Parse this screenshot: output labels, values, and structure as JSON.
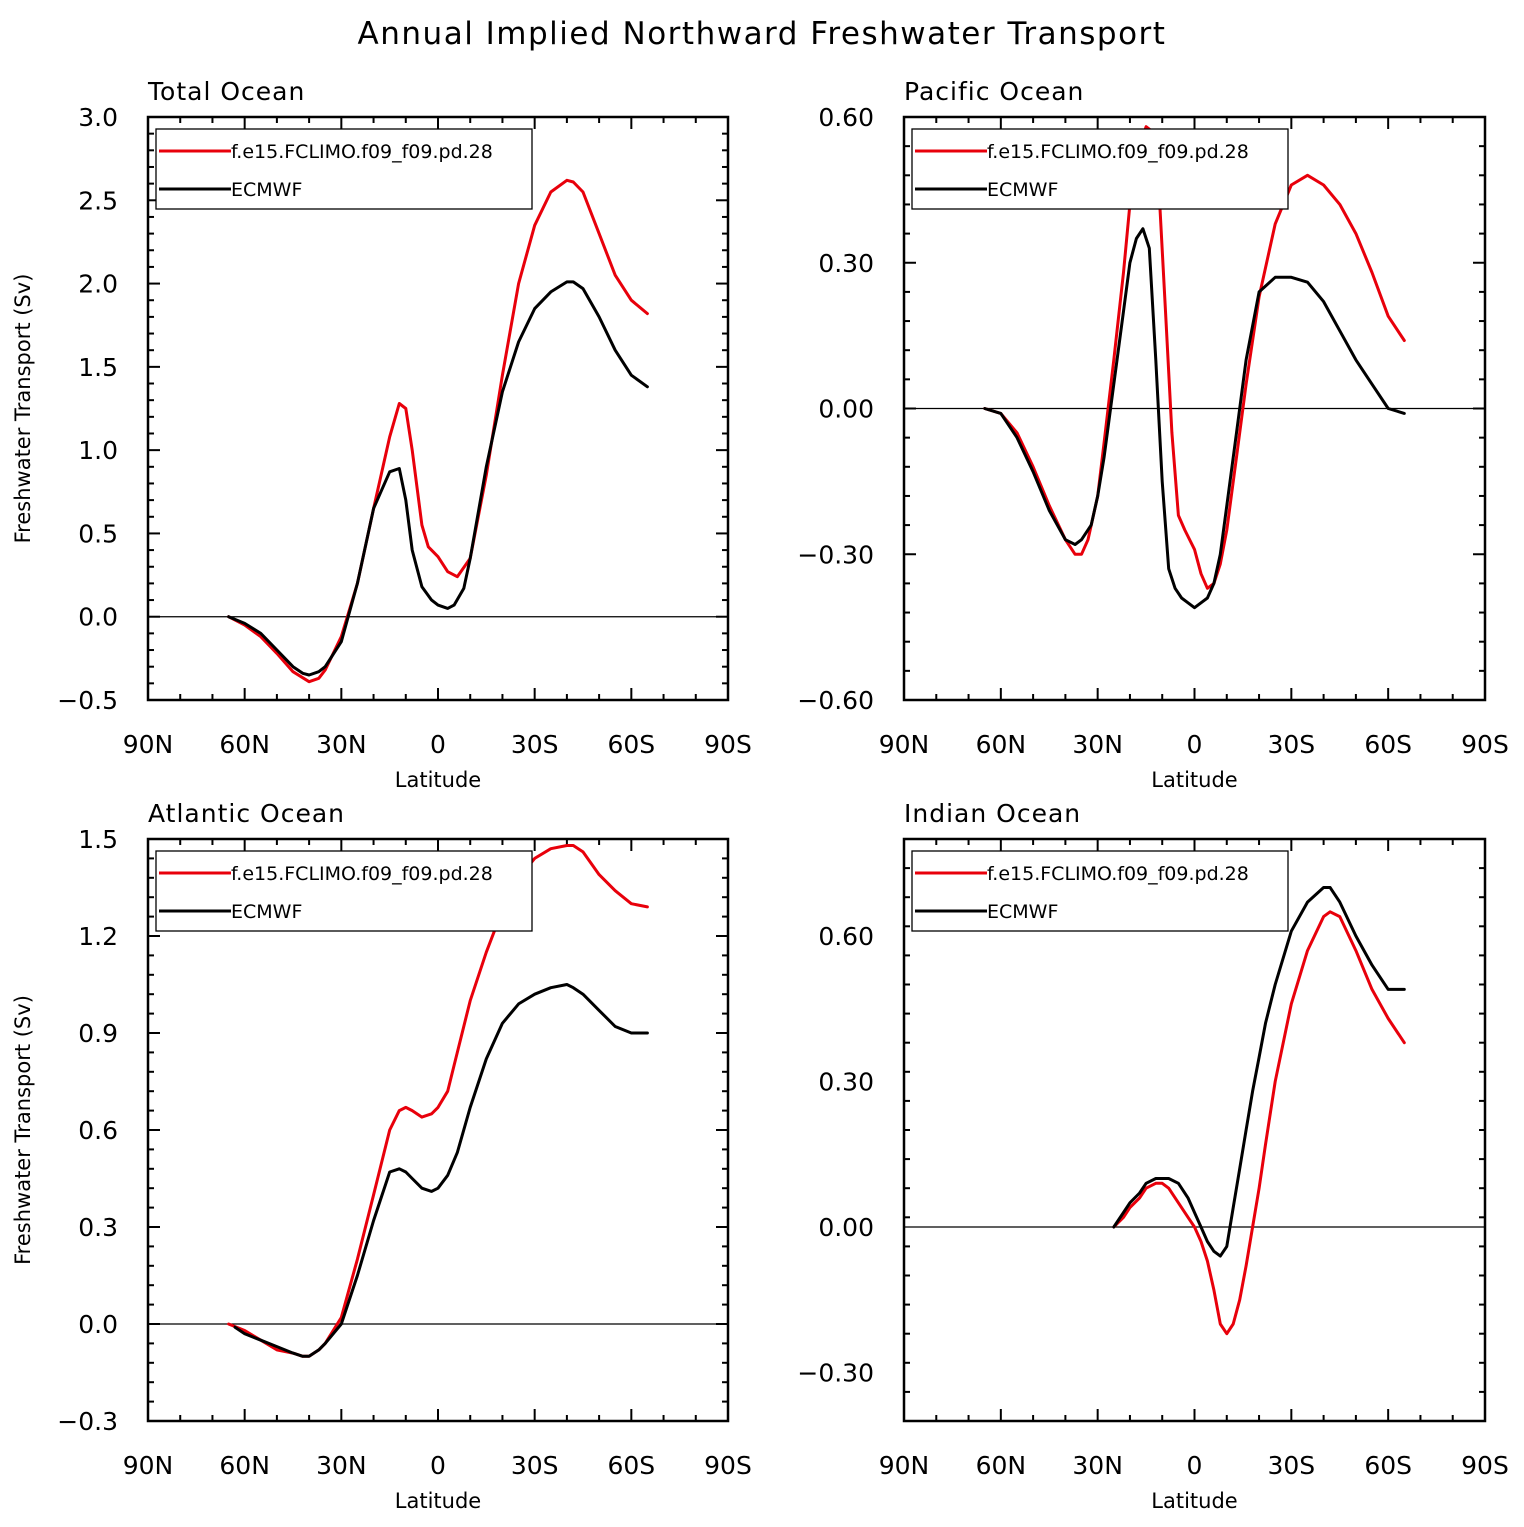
{
  "title": "Annual Implied Northward Freshwater Transport",
  "colors": {
    "model": "#e8000b",
    "obs": "#000000"
  },
  "chart_data": [
    {
      "type": "line",
      "title": "Total Ocean",
      "xlabel": "Latitude",
      "ylabel": "Freshwater Transport (Sv)",
      "xlim": [
        90,
        -90
      ],
      "ylim": [
        -0.5,
        3.0
      ],
      "xticks": [
        90,
        60,
        30,
        0,
        -30,
        -60,
        -90
      ],
      "xticklabels": [
        "90N",
        "60N",
        "30N",
        "0",
        "30S",
        "60S",
        "90S"
      ],
      "yticks": [
        -0.5,
        0.0,
        0.5,
        1.0,
        1.5,
        2.0,
        2.5,
        3.0
      ],
      "yticklabels": [
        "−0.5",
        "0.0",
        "0.5",
        "1.0",
        "1.5",
        "2.0",
        "2.5",
        "3.0"
      ],
      "legend": [
        "f.e15.FCLIMO.f09_f09.pd.28",
        "ECMWF"
      ],
      "legend_position": "top-left",
      "series": [
        {
          "name": "f.e15.FCLIMO.f09_f09.pd.28",
          "color": "model",
          "x": [
            65,
            60,
            55,
            50,
            45,
            40,
            37,
            35,
            30,
            25,
            20,
            15,
            12,
            10,
            8,
            5,
            3,
            0,
            -3,
            -6,
            -10,
            -15,
            -20,
            -25,
            -30,
            -35,
            -40,
            -42,
            -45,
            -50,
            -55,
            -60,
            -65
          ],
          "y": [
            0.0,
            -0.05,
            -0.12,
            -0.22,
            -0.33,
            -0.39,
            -0.37,
            -0.32,
            -0.12,
            0.2,
            0.65,
            1.08,
            1.28,
            1.25,
            1.0,
            0.55,
            0.42,
            0.36,
            0.27,
            0.24,
            0.35,
            0.85,
            1.45,
            2.0,
            2.35,
            2.55,
            2.62,
            2.61,
            2.55,
            2.3,
            2.05,
            1.9,
            1.82
          ]
        },
        {
          "name": "ECMWF",
          "color": "obs",
          "x": [
            65,
            60,
            55,
            50,
            45,
            42,
            40,
            37,
            35,
            30,
            25,
            20,
            15,
            12,
            10,
            8,
            5,
            2,
            0,
            -3,
            -5,
            -8,
            -10,
            -15,
            -20,
            -25,
            -30,
            -35,
            -40,
            -42,
            -45,
            -50,
            -55,
            -60,
            -65
          ],
          "y": [
            0.0,
            -0.04,
            -0.1,
            -0.2,
            -0.3,
            -0.34,
            -0.35,
            -0.33,
            -0.3,
            -0.15,
            0.2,
            0.65,
            0.87,
            0.89,
            0.7,
            0.4,
            0.18,
            0.1,
            0.07,
            0.05,
            0.07,
            0.17,
            0.35,
            0.9,
            1.35,
            1.65,
            1.85,
            1.95,
            2.01,
            2.01,
            1.97,
            1.8,
            1.6,
            1.45,
            1.38
          ]
        }
      ]
    },
    {
      "type": "line",
      "title": "Pacific Ocean",
      "xlabel": "Latitude",
      "ylabel": "",
      "xlim": [
        90,
        -90
      ],
      "ylim": [
        -0.6,
        0.6
      ],
      "xticks": [
        90,
        60,
        30,
        0,
        -30,
        -60,
        -90
      ],
      "xticklabels": [
        "90N",
        "60N",
        "30N",
        "0",
        "30S",
        "60S",
        "90S"
      ],
      "yticks": [
        -0.6,
        -0.3,
        0.0,
        0.3,
        0.6
      ],
      "yticklabels": [
        "−0.60",
        "−0.30",
        "0.00",
        "0.30",
        "0.60"
      ],
      "legend": [
        "f.e15.FCLIMO.f09_f09.pd.28",
        "ECMWF"
      ],
      "legend_position": "top-left",
      "series": [
        {
          "name": "f.e15.FCLIMO.f09_f09.pd.28",
          "color": "model",
          "x": [
            65,
            60,
            55,
            50,
            45,
            40,
            37,
            35,
            33,
            30,
            28,
            25,
            22,
            20,
            18,
            15,
            13,
            11,
            9,
            7,
            5,
            3,
            0,
            -2,
            -4,
            -6,
            -8,
            -10,
            -13,
            -16,
            -20,
            -25,
            -30,
            -35,
            -40,
            -45,
            -50,
            -55,
            -60,
            -65
          ],
          "y": [
            0.0,
            -0.01,
            -0.05,
            -0.12,
            -0.2,
            -0.27,
            -0.3,
            -0.3,
            -0.27,
            -0.18,
            -0.07,
            0.1,
            0.28,
            0.42,
            0.52,
            0.58,
            0.57,
            0.45,
            0.2,
            -0.05,
            -0.22,
            -0.25,
            -0.29,
            -0.34,
            -0.37,
            -0.36,
            -0.32,
            -0.25,
            -0.1,
            0.05,
            0.23,
            0.38,
            0.46,
            0.48,
            0.46,
            0.42,
            0.36,
            0.28,
            0.19,
            0.14
          ]
        },
        {
          "name": "ECMWF",
          "color": "obs",
          "x": [
            65,
            60,
            55,
            50,
            45,
            40,
            37,
            35,
            32,
            30,
            28,
            25,
            22,
            20,
            18,
            16,
            14,
            12,
            10,
            8,
            6,
            4,
            2,
            0,
            -2,
            -4,
            -6,
            -8,
            -10,
            -13,
            -16,
            -20,
            -25,
            -30,
            -35,
            -40,
            -45,
            -50,
            -55,
            -60,
            -65
          ],
          "y": [
            0.0,
            -0.01,
            -0.06,
            -0.13,
            -0.21,
            -0.27,
            -0.28,
            -0.27,
            -0.24,
            -0.18,
            -0.1,
            0.05,
            0.2,
            0.3,
            0.35,
            0.37,
            0.33,
            0.1,
            -0.15,
            -0.33,
            -0.37,
            -0.39,
            -0.4,
            -0.41,
            -0.4,
            -0.39,
            -0.36,
            -0.3,
            -0.2,
            -0.05,
            0.1,
            0.24,
            0.27,
            0.27,
            0.26,
            0.22,
            0.16,
            0.1,
            0.05,
            0.0,
            -0.01
          ]
        }
      ]
    },
    {
      "type": "line",
      "title": "Atlantic Ocean",
      "xlabel": "Latitude",
      "ylabel": "Freshwater Transport (Sv)",
      "xlim": [
        90,
        -90
      ],
      "ylim": [
        -0.3,
        1.5
      ],
      "xticks": [
        90,
        60,
        30,
        0,
        -30,
        -60,
        -90
      ],
      "xticklabels": [
        "90N",
        "60N",
        "30N",
        "0",
        "30S",
        "60S",
        "90S"
      ],
      "yticks": [
        -0.3,
        0.0,
        0.3,
        0.6,
        0.9,
        1.2,
        1.5
      ],
      "yticklabels": [
        "−0.3",
        "0.0",
        "0.3",
        "0.6",
        "0.9",
        "1.2",
        "1.5"
      ],
      "legend": [
        "f.e15.FCLIMO.f09_f09.pd.28",
        "ECMWF"
      ],
      "legend_position": "top-left",
      "series": [
        {
          "name": "f.e15.FCLIMO.f09_f09.pd.28",
          "color": "model",
          "x": [
            65,
            60,
            55,
            50,
            45,
            42,
            40,
            37,
            35,
            30,
            25,
            20,
            15,
            12,
            10,
            8,
            5,
            2,
            0,
            -3,
            -5,
            -10,
            -15,
            -20,
            -25,
            -30,
            -35,
            -40,
            -42,
            -45,
            -50,
            -55,
            -60,
            -65
          ],
          "y": [
            0.0,
            -0.02,
            -0.05,
            -0.08,
            -0.09,
            -0.1,
            -0.1,
            -0.08,
            -0.06,
            0.02,
            0.2,
            0.4,
            0.6,
            0.66,
            0.67,
            0.66,
            0.64,
            0.65,
            0.67,
            0.72,
            0.8,
            1.0,
            1.15,
            1.28,
            1.38,
            1.44,
            1.47,
            1.48,
            1.48,
            1.46,
            1.39,
            1.34,
            1.3,
            1.29
          ]
        },
        {
          "name": "ECMWF",
          "color": "obs",
          "x": [
            63,
            60,
            55,
            50,
            45,
            42,
            40,
            37,
            35,
            30,
            25,
            20,
            15,
            12,
            10,
            8,
            5,
            2,
            0,
            -3,
            -6,
            -10,
            -15,
            -20,
            -25,
            -30,
            -35,
            -40,
            -42,
            -45,
            -50,
            -55,
            -60,
            -65
          ],
          "y": [
            -0.01,
            -0.03,
            -0.05,
            -0.07,
            -0.09,
            -0.1,
            -0.1,
            -0.08,
            -0.06,
            0.0,
            0.15,
            0.32,
            0.47,
            0.48,
            0.47,
            0.45,
            0.42,
            0.41,
            0.42,
            0.46,
            0.53,
            0.67,
            0.82,
            0.93,
            0.99,
            1.02,
            1.04,
            1.05,
            1.04,
            1.02,
            0.97,
            0.92,
            0.9,
            0.9
          ]
        }
      ]
    },
    {
      "type": "line",
      "title": "Indian Ocean",
      "xlabel": "Latitude",
      "ylabel": "",
      "xlim": [
        90,
        -90
      ],
      "ylim": [
        -0.4,
        0.8
      ],
      "xticks": [
        90,
        60,
        30,
        0,
        -30,
        -60,
        -90
      ],
      "xticklabels": [
        "90N",
        "60N",
        "30N",
        "0",
        "30S",
        "60S",
        "90S"
      ],
      "yticks": [
        -0.3,
        0.0,
        0.3,
        0.6
      ],
      "yticklabels": [
        "−0.30",
        "0.00",
        "0.30",
        "0.60"
      ],
      "legend": [
        "f.e15.FCLIMO.f09_f09.pd.28",
        "ECMWF"
      ],
      "legend_position": "top-left",
      "series": [
        {
          "name": "f.e15.FCLIMO.f09_f09.pd.28",
          "color": "model",
          "x": [
            25,
            22,
            20,
            17,
            15,
            12,
            10,
            8,
            5,
            2,
            0,
            -2,
            -4,
            -6,
            -8,
            -10,
            -12,
            -14,
            -16,
            -18,
            -20,
            -22,
            -25,
            -30,
            -35,
            -40,
            -42,
            -45,
            -50,
            -55,
            -60,
            -65
          ],
          "y": [
            0.0,
            0.02,
            0.04,
            0.06,
            0.08,
            0.09,
            0.09,
            0.08,
            0.05,
            0.02,
            0.0,
            -0.03,
            -0.07,
            -0.13,
            -0.2,
            -0.22,
            -0.2,
            -0.15,
            -0.08,
            0.0,
            0.08,
            0.17,
            0.3,
            0.46,
            0.57,
            0.64,
            0.65,
            0.64,
            0.57,
            0.49,
            0.43,
            0.38
          ]
        },
        {
          "name": "ECMWF",
          "color": "obs",
          "x": [
            25,
            22,
            20,
            17,
            15,
            12,
            10,
            8,
            5,
            2,
            0,
            -2,
            -4,
            -6,
            -8,
            -10,
            -12,
            -14,
            -16,
            -18,
            -20,
            -22,
            -25,
            -30,
            -35,
            -40,
            -42,
            -45,
            -50,
            -55,
            -60,
            -65
          ],
          "y": [
            0.0,
            0.03,
            0.05,
            0.07,
            0.09,
            0.1,
            0.1,
            0.1,
            0.09,
            0.06,
            0.03,
            0.0,
            -0.03,
            -0.05,
            -0.06,
            -0.04,
            0.04,
            0.12,
            0.2,
            0.28,
            0.35,
            0.42,
            0.5,
            0.61,
            0.67,
            0.7,
            0.7,
            0.67,
            0.6,
            0.54,
            0.49,
            0.49
          ]
        }
      ]
    }
  ]
}
